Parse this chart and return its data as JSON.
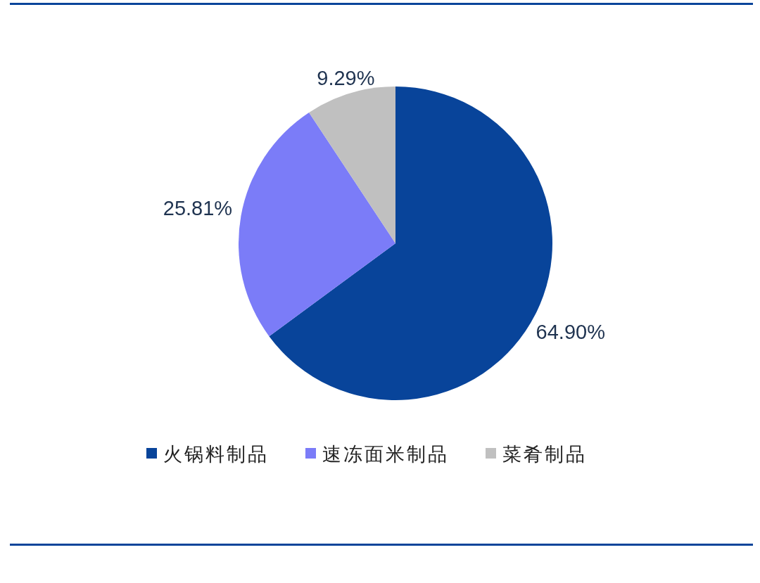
{
  "chart_data": {
    "type": "pie",
    "categories": [
      "火锅料制品",
      "速冻面米制品",
      "菜肴制品"
    ],
    "values": [
      64.9,
      25.81,
      9.29
    ],
    "colors": [
      "#08449a",
      "#7b7cf8",
      "#c0c0c0"
    ],
    "value_labels": [
      "64.90%",
      "25.81%",
      "9.29%"
    ],
    "legend": "bottom"
  }
}
